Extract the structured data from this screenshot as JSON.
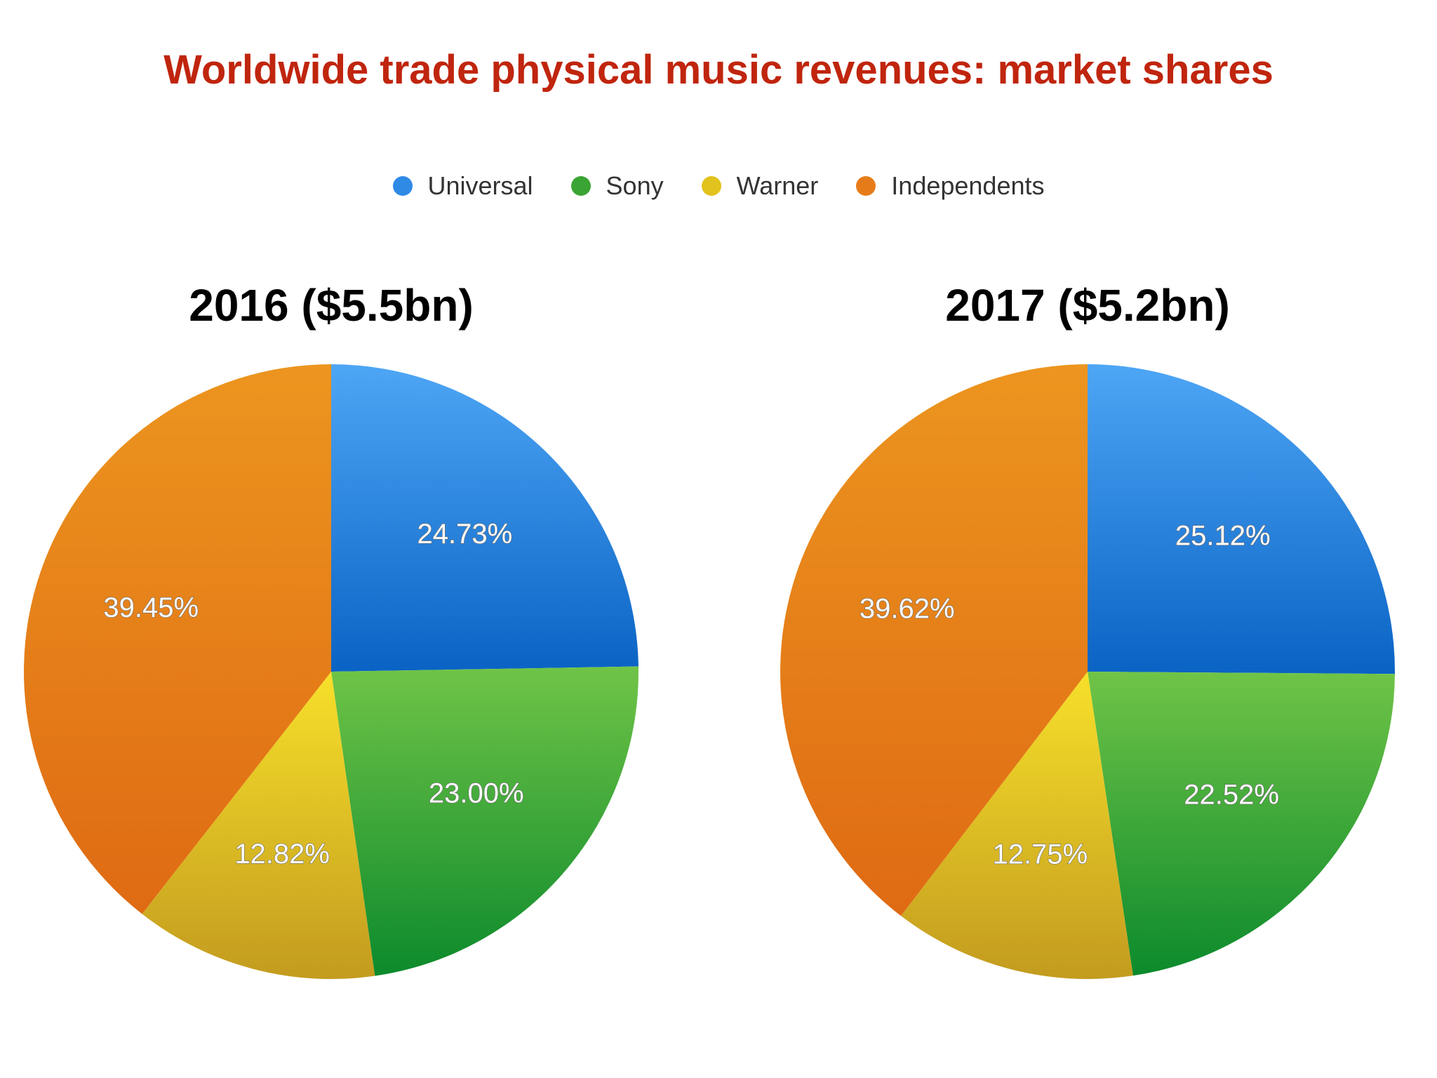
{
  "title": "Worldwide trade physical music revenues: market shares",
  "legend": [
    {
      "label": "Universal",
      "color": "#2f8ae6"
    },
    {
      "label": "Sony",
      "color": "#3aa534"
    },
    {
      "label": "Warner",
      "color": "#e2c21c"
    },
    {
      "label": "Independents",
      "color": "#e67c19"
    }
  ],
  "chart_data": [
    {
      "type": "pie",
      "title": "2016 ($5.5bn)",
      "categories": [
        "Universal",
        "Sony",
        "Warner",
        "Independents"
      ],
      "values": [
        24.73,
        23.0,
        12.82,
        39.45
      ],
      "labels": [
        "24.73%",
        "23.00%",
        "12.82%",
        "39.45%"
      ]
    },
    {
      "type": "pie",
      "title": "2017 ($5.2bn)",
      "categories": [
        "Universal",
        "Sony",
        "Warner",
        "Independents"
      ],
      "values": [
        25.12,
        22.52,
        12.75,
        39.62
      ],
      "labels": [
        "25.12%",
        "22.52%",
        "12.75%",
        "39.62%"
      ]
    }
  ]
}
